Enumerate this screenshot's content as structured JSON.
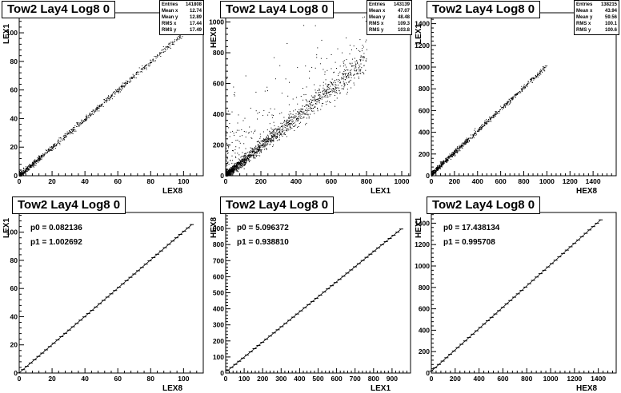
{
  "chart_data": [
    {
      "type": "scatter",
      "title": "Tow2 Lay4 Log8 0",
      "xlabel": "LEX8",
      "ylabel": "LEX1",
      "xlim": [
        0,
        112
      ],
      "ylim": [
        0,
        114
      ],
      "xticks": [
        0,
        20,
        40,
        60,
        80,
        100
      ],
      "yticks": [
        0,
        20,
        40,
        60,
        80,
        100
      ],
      "stats": [
        [
          "Entries",
          "141808"
        ],
        [
          "Mean x",
          "12.74"
        ],
        [
          "Mean y",
          "12.89"
        ],
        [
          "RMS x",
          "17.44"
        ],
        [
          "RMS y",
          "17.49"
        ]
      ],
      "relation": {
        "p0": 0.08,
        "p1": 1.0,
        "x_max": 104,
        "spread": 1.0
      }
    },
    {
      "type": "scatter",
      "title": "Tow2 Lay4 Log8 0",
      "xlabel": "LEX1",
      "ylabel": "HEX8",
      "xlim": [
        0,
        1050
      ],
      "ylim": [
        0,
        1060
      ],
      "xticks": [
        0,
        200,
        400,
        600,
        800,
        1000
      ],
      "yticks": [
        0,
        200,
        400,
        600,
        800,
        1000
      ],
      "stats": [
        [
          "Entries",
          "143139"
        ],
        [
          "Mean x",
          "47.07"
        ],
        [
          "Mean y",
          "48.48"
        ],
        [
          "RMS x",
          "109.3"
        ],
        [
          "RMS y",
          "103.8"
        ]
      ],
      "relation": {
        "p0": 5.1,
        "p1": 0.94,
        "x_max": 800,
        "spread": 40
      }
    },
    {
      "type": "scatter",
      "title": "Tow2 Lay4 Log8 0",
      "xlabel": "HEX8",
      "ylabel": "LEX1",
      "xlim": [
        0,
        1600
      ],
      "ylim": [
        0,
        1500
      ],
      "xticks": [
        0,
        200,
        400,
        600,
        800,
        1000,
        1200,
        1400
      ],
      "yticks": [
        0,
        200,
        400,
        600,
        800,
        1000,
        1200,
        1400
      ],
      "stats": [
        [
          "Entries",
          "138215"
        ],
        [
          "Mean x",
          "43.94"
        ],
        [
          "Mean y",
          "59.56"
        ],
        [
          "RMS x",
          "100.1"
        ],
        [
          "RMS y",
          "100.6"
        ]
      ],
      "relation": {
        "p0": 17.4,
        "p1": 1.0,
        "x_max": 1000,
        "spread": 12
      }
    },
    {
      "type": "line",
      "title": "Tow2 Lay4 Log8 0",
      "xlabel": "LEX8",
      "ylabel": "LEX1",
      "xlim": [
        0,
        112
      ],
      "ylim": [
        0,
        114
      ],
      "xticks": [
        0,
        20,
        40,
        60,
        80,
        100
      ],
      "yticks": [
        0,
        20,
        40,
        60,
        80,
        100
      ],
      "fit": {
        "p0": "p0 = 0.082136",
        "p1": "p1 = 1.002692"
      },
      "x": [
        0,
        105
      ],
      "y": [
        0.08,
        105.4
      ]
    },
    {
      "type": "line",
      "title": "Tow2 Lay4 Log8 0",
      "xlabel": "LEX1",
      "ylabel": "HEX8",
      "xlim": [
        0,
        1000
      ],
      "ylim": [
        0,
        1000
      ],
      "xticks": [
        0,
        100,
        200,
        300,
        400,
        500,
        600,
        700,
        800,
        900
      ],
      "yticks": [
        0,
        100,
        200,
        300,
        400,
        500,
        600,
        700,
        800,
        900
      ],
      "fit": {
        "p0": "p0 = 5.096372",
        "p1": "p1 = 0.938810"
      },
      "x": [
        10,
        950
      ],
      "y": [
        14.5,
        897
      ]
    },
    {
      "type": "line",
      "title": "Tow2 Lay4 Log8 0",
      "xlabel": "HEX8",
      "ylabel": "HEX1",
      "xlim": [
        0,
        1550
      ],
      "ylim": [
        0,
        1500
      ],
      "xticks": [
        0,
        200,
        400,
        600,
        800,
        1000,
        1200,
        1400
      ],
      "yticks": [
        0,
        200,
        400,
        600,
        800,
        1000,
        1200,
        1400
      ],
      "fit": {
        "p0": "p0 = 17.438134",
        "p1": "p1 = 0.995708"
      },
      "x": [
        0,
        1420
      ],
      "y": [
        17.4,
        1431
      ]
    }
  ]
}
